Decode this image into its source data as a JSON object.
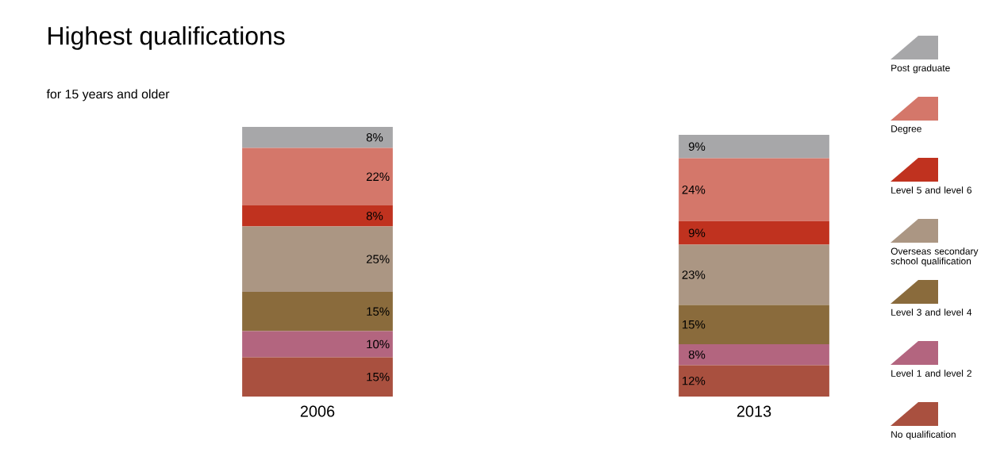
{
  "chart_data": {
    "type": "bar",
    "stacked": true,
    "title": "Highest qualifications",
    "subtitle": "for 15 years and older",
    "categories": [
      "2006",
      "2013"
    ],
    "legend": "right",
    "series": [
      {
        "name": "No qualification",
        "color": "#a9503f",
        "values": [
          15,
          12
        ],
        "value_labels": [
          "15%",
          "12%"
        ]
      },
      {
        "name": "Level 1 and level 2",
        "color": "#b3657f",
        "values": [
          10,
          8
        ],
        "value_labels": [
          "10%",
          "8%"
        ]
      },
      {
        "name": "Level 3 and level 4",
        "color": "#8a6b3c",
        "values": [
          15,
          15
        ],
        "value_labels": [
          "15%",
          "15%"
        ]
      },
      {
        "name": "Overseas secondary school qualification",
        "color": "#ab9683",
        "values": [
          25,
          23
        ],
        "value_labels": [
          "25%",
          "23%"
        ]
      },
      {
        "name": "Level 5 and level 6",
        "color": "#c0321f",
        "values": [
          8,
          9
        ],
        "value_labels": [
          "8%",
          "9%"
        ]
      },
      {
        "name": "Degree",
        "color": "#d4776a",
        "values": [
          22,
          24
        ],
        "value_labels": [
          "22%",
          "24%"
        ]
      },
      {
        "name": "Post graduate",
        "color": "#a7a7a9",
        "values": [
          8,
          9
        ],
        "value_labels": [
          "8%",
          "9%"
        ]
      }
    ]
  }
}
